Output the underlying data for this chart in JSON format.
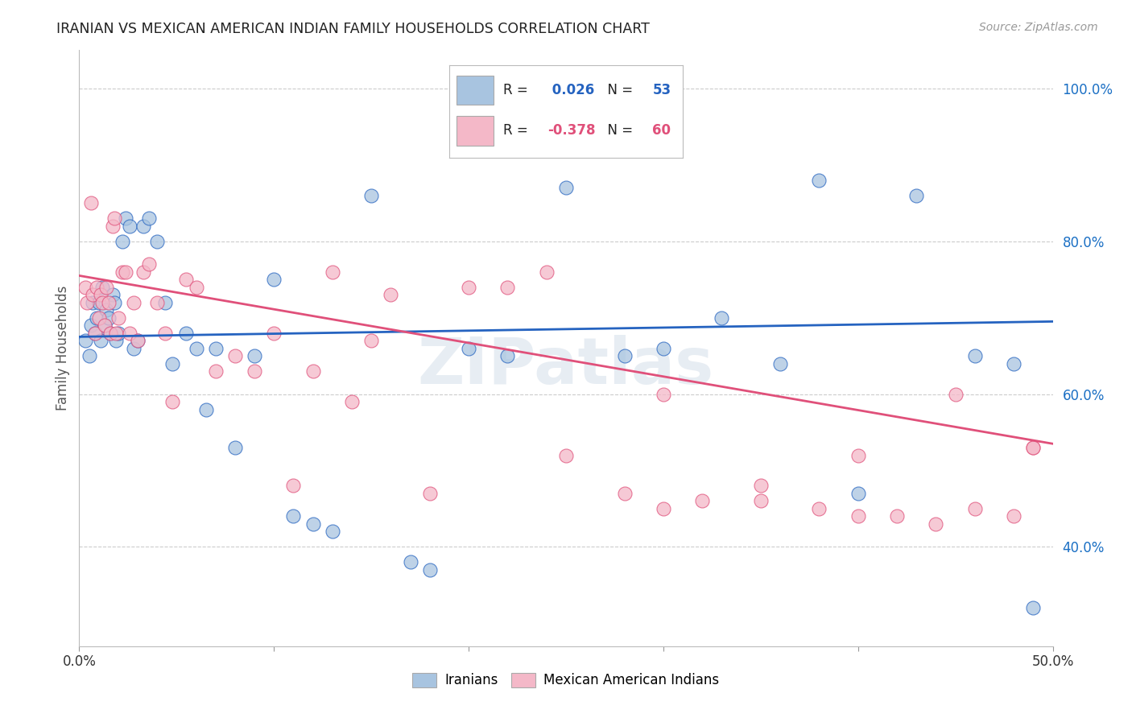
{
  "title": "IRANIAN VS MEXICAN AMERICAN INDIAN FAMILY HOUSEHOLDS CORRELATION CHART",
  "source": "Source: ZipAtlas.com",
  "ylabel": "Family Households",
  "xlim": [
    0.0,
    0.5
  ],
  "ylim": [
    0.27,
    1.05
  ],
  "xtick_positions": [
    0.0,
    0.1,
    0.2,
    0.3,
    0.4,
    0.5
  ],
  "xtick_labels": [
    "0.0%",
    "",
    "",
    "",
    "",
    "50.0%"
  ],
  "ytick_positions": [
    1.0,
    0.8,
    0.6,
    0.4
  ],
  "ytick_labels": [
    "100.0%",
    "80.0%",
    "60.0%",
    "40.0%"
  ],
  "iranians_color": "#a8c4e0",
  "mexican_color": "#f4b8c8",
  "line_iranian_color": "#2563c0",
  "line_mexican_color": "#e0507a",
  "R_iranian": 0.026,
  "N_iranian": 53,
  "R_mexican": -0.378,
  "N_mexican": 60,
  "watermark": "ZIPatlas",
  "iranians_x": [
    0.003,
    0.005,
    0.006,
    0.007,
    0.008,
    0.009,
    0.01,
    0.011,
    0.012,
    0.013,
    0.014,
    0.015,
    0.016,
    0.017,
    0.018,
    0.019,
    0.02,
    0.022,
    0.024,
    0.026,
    0.028,
    0.03,
    0.033,
    0.036,
    0.04,
    0.044,
    0.048,
    0.055,
    0.06,
    0.065,
    0.07,
    0.08,
    0.09,
    0.1,
    0.11,
    0.12,
    0.13,
    0.15,
    0.17,
    0.18,
    0.2,
    0.22,
    0.25,
    0.28,
    0.3,
    0.33,
    0.36,
    0.38,
    0.4,
    0.43,
    0.46,
    0.48,
    0.49
  ],
  "iranians_y": [
    0.67,
    0.65,
    0.69,
    0.72,
    0.68,
    0.7,
    0.72,
    0.67,
    0.74,
    0.69,
    0.71,
    0.7,
    0.68,
    0.73,
    0.72,
    0.67,
    0.68,
    0.8,
    0.83,
    0.82,
    0.66,
    0.67,
    0.82,
    0.83,
    0.8,
    0.72,
    0.64,
    0.68,
    0.66,
    0.58,
    0.66,
    0.53,
    0.65,
    0.75,
    0.44,
    0.43,
    0.42,
    0.86,
    0.38,
    0.37,
    0.66,
    0.65,
    0.87,
    0.65,
    0.66,
    0.7,
    0.64,
    0.88,
    0.47,
    0.86,
    0.65,
    0.64,
    0.32
  ],
  "mexican_x": [
    0.003,
    0.004,
    0.006,
    0.007,
    0.008,
    0.009,
    0.01,
    0.011,
    0.012,
    0.013,
    0.014,
    0.015,
    0.016,
    0.017,
    0.018,
    0.019,
    0.02,
    0.022,
    0.024,
    0.026,
    0.028,
    0.03,
    0.033,
    0.036,
    0.04,
    0.044,
    0.048,
    0.055,
    0.06,
    0.07,
    0.08,
    0.09,
    0.1,
    0.11,
    0.12,
    0.13,
    0.14,
    0.15,
    0.16,
    0.18,
    0.2,
    0.22,
    0.24,
    0.25,
    0.28,
    0.3,
    0.32,
    0.35,
    0.38,
    0.4,
    0.42,
    0.44,
    0.46,
    0.48,
    0.49,
    0.3,
    0.35,
    0.4,
    0.45,
    0.49
  ],
  "mexican_y": [
    0.74,
    0.72,
    0.85,
    0.73,
    0.68,
    0.74,
    0.7,
    0.73,
    0.72,
    0.69,
    0.74,
    0.72,
    0.68,
    0.82,
    0.83,
    0.68,
    0.7,
    0.76,
    0.76,
    0.68,
    0.72,
    0.67,
    0.76,
    0.77,
    0.72,
    0.68,
    0.59,
    0.75,
    0.74,
    0.63,
    0.65,
    0.63,
    0.68,
    0.48,
    0.63,
    0.76,
    0.59,
    0.67,
    0.73,
    0.47,
    0.74,
    0.74,
    0.76,
    0.52,
    0.47,
    0.6,
    0.46,
    0.48,
    0.45,
    0.52,
    0.44,
    0.43,
    0.45,
    0.44,
    0.53,
    0.45,
    0.46,
    0.44,
    0.6,
    0.53
  ]
}
